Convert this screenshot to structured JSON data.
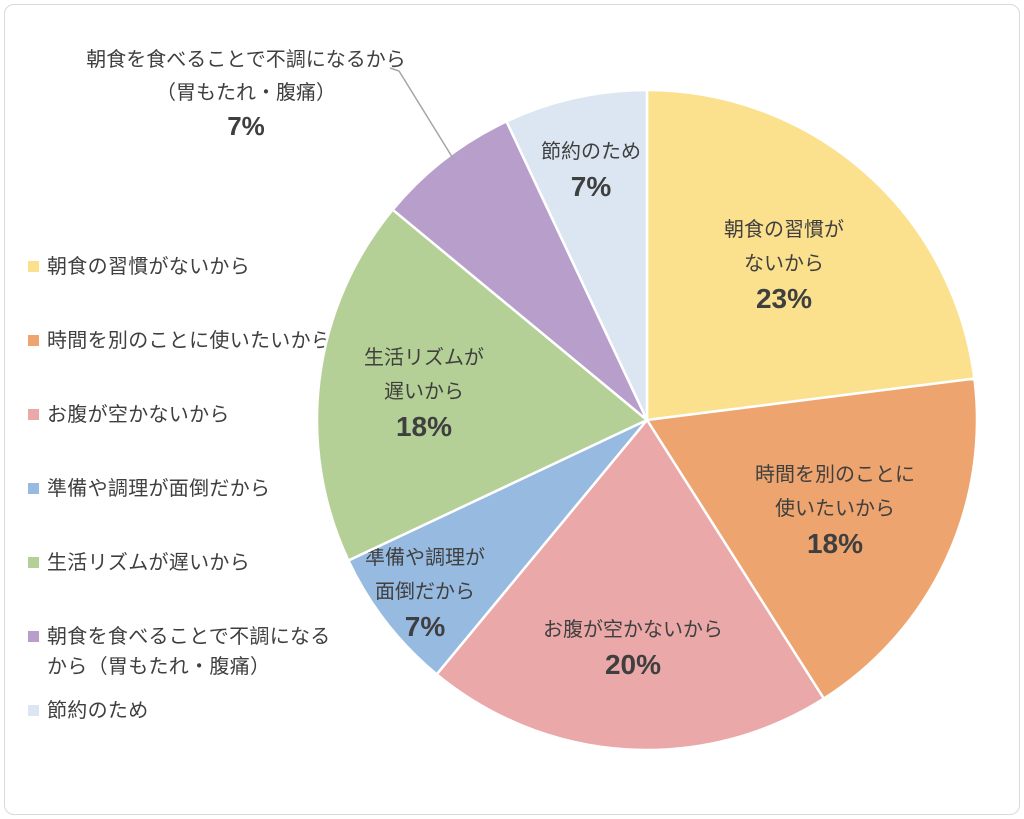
{
  "text_color": "#3F3F3F",
  "border_color": "#D9D9D9",
  "leader_line_color": "#A6A6A6",
  "callout": {
    "line1": "朝食を食べることで不調になるから",
    "line2": "（胃もたれ・腹痛）",
    "pct": "7%"
  },
  "chart_data": {
    "type": "pie",
    "title": "",
    "direction": "clockwise",
    "start_angle_deg": 0,
    "legend_position": "left",
    "slices": [
      {
        "label": "朝食の習慣がないから",
        "value": 23,
        "pct_label": "23%",
        "color": "#FBE18E",
        "label_lines": [
          "朝食の習慣が",
          "ないから"
        ],
        "label_placement": "inside"
      },
      {
        "label": "時間を別のことに使いたいから",
        "value": 18,
        "pct_label": "18%",
        "color": "#EDA46F",
        "label_lines": [
          "時間を別のことに",
          "使いたいから"
        ],
        "label_placement": "inside"
      },
      {
        "label": "お腹が空かないから",
        "value": 20,
        "pct_label": "20%",
        "color": "#EAA8A9",
        "label_lines": [
          "お腹が空かないから"
        ],
        "label_placement": "inside"
      },
      {
        "label": "準備や調理が面倒だから",
        "value": 7,
        "pct_label": "7%",
        "color": "#97BAE1",
        "label_lines": [
          "準備や調理が",
          "面倒だから"
        ],
        "label_placement": "inside"
      },
      {
        "label": "生活リズムが遅いから",
        "value": 18,
        "pct_label": "18%",
        "color": "#B4D096",
        "label_lines": [
          "生活リズムが",
          "遅いから"
        ],
        "label_placement": "inside"
      },
      {
        "label": "朝食を食べることで不調になるから（胃もたれ・腹痛）",
        "value": 7,
        "pct_label": "7%",
        "color": "#B89FCB",
        "label_lines": [],
        "label_placement": "callout"
      },
      {
        "label": "節約のため",
        "value": 7,
        "pct_label": "7%",
        "color": "#DCE6F2",
        "label_lines": [
          "節約のため"
        ],
        "label_placement": "inside"
      }
    ]
  }
}
